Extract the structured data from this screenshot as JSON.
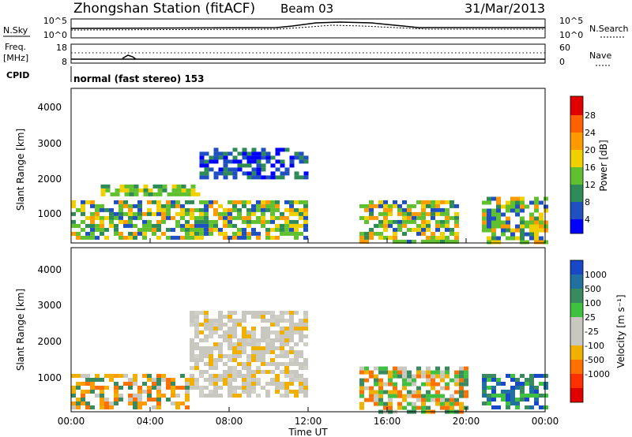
{
  "header": {
    "station": "Zhongshan Station (fitACF)",
    "beam": "Beam 03",
    "date": "31/Mar/2013"
  },
  "noise_panel": {
    "left_label": "N.Sky",
    "right_label": "N.Search",
    "left_ticks": [
      "10^5",
      "10^0"
    ],
    "right_ticks": [
      "10^5",
      "10^0"
    ]
  },
  "freq_panel": {
    "left_label_1": "Freq.",
    "left_label_2": "[MHz]",
    "right_label": "Nave",
    "left_ticks": [
      "18",
      "8"
    ],
    "right_ticks": [
      "60",
      "0"
    ],
    "cpid_label": "CPID",
    "cpid_text": "normal (fast stereo) 153"
  },
  "axes": {
    "ylabel": "Slant Range [km]",
    "xlabel": "Time UT",
    "y_ticks": [
      "4000",
      "3000",
      "2000",
      "1000"
    ],
    "x_ticks": [
      "00:00",
      "04:00",
      "08:00",
      "12:00",
      "16:00",
      "20:00",
      "00:00"
    ]
  },
  "power_colorbar": {
    "label": "Power [dB]",
    "ticks": [
      "28",
      "24",
      "20",
      "16",
      "12",
      "8",
      "4"
    ],
    "colors": [
      "#e00000",
      "#ff6000",
      "#ff9a00",
      "#f0d000",
      "#60c030",
      "#2e8b57",
      "#2050c0",
      "#0000ff"
    ]
  },
  "velocity_colorbar": {
    "label": "Velocity [m s⁻¹]",
    "ticks": [
      "1000",
      "500",
      "100",
      "25",
      "-25",
      "-100",
      "-500",
      "-1000"
    ],
    "colors": [
      "#1848c8",
      "#2070a0",
      "#3a8a60",
      "#40c040",
      "#c8c8c0",
      "#c8c8c0",
      "#f0b000",
      "#ff7000",
      "#ff3000",
      "#e00000"
    ]
  },
  "chart_data": [
    {
      "type": "heatmap",
      "title": "",
      "xlabel": "Time UT",
      "ylabel": "Slant Range [km]",
      "xlim": [
        0,
        24
      ],
      "ylim": [
        180,
        4600
      ],
      "colorbar_label": "Power [dB]",
      "colorbar_range": [
        0,
        32
      ],
      "regions": [
        {
          "t0": 0.0,
          "t1": 12.0,
          "r0": 300,
          "r1": 1400,
          "level": "mixed"
        },
        {
          "t0": 1.5,
          "t1": 6.5,
          "r0": 1550,
          "r1": 1850,
          "level": "medium"
        },
        {
          "t0": 6.5,
          "t1": 11.9,
          "r0": 2100,
          "r1": 2900,
          "level": "low"
        },
        {
          "t0": 14.6,
          "t1": 19.6,
          "r0": 200,
          "r1": 1400,
          "level": "mixed"
        },
        {
          "t0": 20.8,
          "t1": 24.0,
          "r0": 200,
          "r1": 1500,
          "level": "mixed"
        }
      ]
    },
    {
      "type": "heatmap",
      "title": "",
      "xlabel": "Time UT",
      "ylabel": "Slant Range [km]",
      "xlim": [
        0,
        24
      ],
      "ylim": [
        180,
        4600
      ],
      "colorbar_label": "Velocity [m s⁻¹]",
      "colorbar_range": [
        -1000,
        1000
      ],
      "regions": [
        {
          "t0": 0.0,
          "t1": 6.0,
          "r0": 300,
          "r1": 1200,
          "level": "negative"
        },
        {
          "t0": 6.0,
          "t1": 12.0,
          "r0": 600,
          "r1": 2900,
          "level": "near-zero"
        },
        {
          "t0": 14.6,
          "t1": 20.0,
          "r0": 200,
          "r1": 1400,
          "level": "mixed"
        },
        {
          "t0": 20.8,
          "t1": 24.0,
          "r0": 300,
          "r1": 1200,
          "level": "positive"
        }
      ]
    }
  ]
}
